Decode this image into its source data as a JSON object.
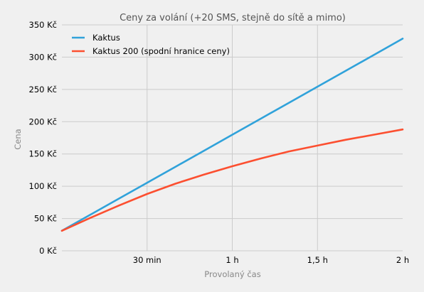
{
  "chart_data": {
    "type": "line",
    "title": "Ceny za volání (+20 SMS, stejně do sítě a mimo)",
    "xlabel": "Provolaný čas",
    "ylabel": "Cena",
    "xlim": [
      0,
      120
    ],
    "ylim": [
      0,
      350
    ],
    "x_ticks": [
      {
        "value": 30,
        "label": "30 min"
      },
      {
        "value": 60,
        "label": "1 h"
      },
      {
        "value": 90,
        "label": "1,5 h"
      },
      {
        "value": 120,
        "label": "2 h"
      }
    ],
    "y_ticks": [
      {
        "value": 0,
        "label": "0 Kč"
      },
      {
        "value": 50,
        "label": "50 Kč"
      },
      {
        "value": 100,
        "label": "100 Kč"
      },
      {
        "value": 150,
        "label": "150 Kč"
      },
      {
        "value": 200,
        "label": "200 Kč"
      },
      {
        "value": 250,
        "label": "250 Kč"
      },
      {
        "value": 300,
        "label": "300 Kč"
      },
      {
        "value": 350,
        "label": "350 Kč"
      }
    ],
    "grid": true,
    "legend_position": "top-left",
    "series": [
      {
        "name": "Kaktus",
        "color": "#30a2da",
        "x": [
          0,
          10,
          20,
          30,
          40,
          50,
          60,
          70,
          80,
          90,
          100,
          110,
          120
        ],
        "y": [
          31,
          55.8,
          80.6,
          105.4,
          130.2,
          155,
          179.8,
          204.6,
          229.4,
          254.2,
          279,
          303.8,
          328.6
        ]
      },
      {
        "name": "Kaktus 200 (spodní hranice ceny)",
        "color": "#fc4f30",
        "x": [
          0,
          10,
          20,
          30,
          40,
          50,
          60,
          70,
          80,
          90,
          100,
          110,
          120
        ],
        "y": [
          31,
          51,
          70,
          88,
          104,
          118,
          131,
          143,
          154,
          163,
          172,
          180,
          188
        ]
      }
    ]
  }
}
